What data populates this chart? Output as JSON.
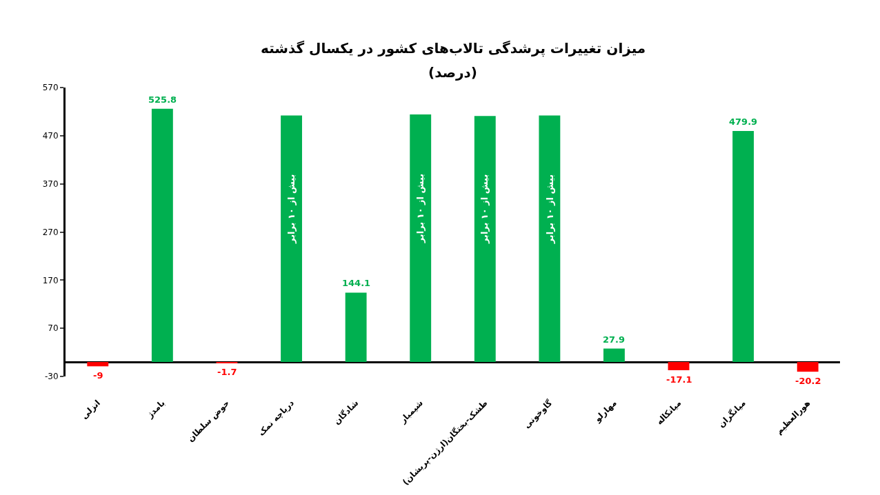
{
  "chart_data": {
    "type": "bar",
    "title": "میزان تغییرات پرشدگی تالاب‌های کشور در یکسال گذشته",
    "subtitle": "(درصد)",
    "categories": [
      "انزلی",
      "بامدژ",
      "حوض سلطان",
      "دریاچه نمک",
      "شادگان",
      "شیمبار",
      "طشک-بختگان(ارژن-پریشان)",
      "گاوخونی",
      "مهارلو",
      "میانکاله",
      "میانگران",
      "هورالعظیم"
    ],
    "values": [
      -9,
      525.8,
      -1.7,
      512,
      144.1,
      514,
      511,
      512,
      27.9,
      -17.1,
      479.9,
      -20.2
    ],
    "colors": [
      "#ff0000",
      "#00b050",
      "#ff0000",
      "#00b050",
      "#00b050",
      "#00b050",
      "#00b050",
      "#00b050",
      "#00b050",
      "#ff0000",
      "#00b050",
      "#ff0000"
    ],
    "value_labels": [
      "-9",
      "525.8",
      "-1.7",
      "بیش از ۱۰ برابر",
      "144.1",
      "بیش از ۱۰ برابر",
      "بیش از ۱۰ برابر",
      "بیش از ۱۰ برابر",
      "27.9",
      "-17.1",
      "479.9",
      "-20.2"
    ],
    "ylim": [
      -30,
      570
    ],
    "yticks": [
      -30,
      70,
      170,
      270,
      370,
      470,
      570
    ],
    "legend": false
  }
}
